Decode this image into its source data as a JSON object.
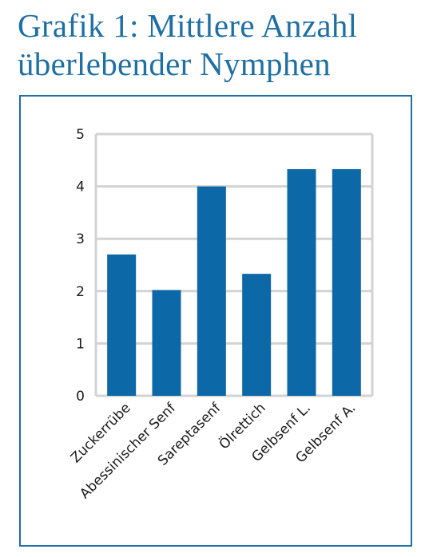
{
  "title": "Grafik 1: Mittlere Anzahl überlebender Nymphen",
  "chart_data": {
    "type": "bar",
    "categories": [
      "Zuckerrübe",
      "Abessinischer Senf",
      "Sareptasenf",
      "Ölrettich",
      "Gelbsenf L.",
      "Gelbsenf A."
    ],
    "values": [
      2.7,
      2.02,
      4.0,
      2.33,
      4.33,
      4.33
    ],
    "ylim": [
      0,
      5
    ],
    "yticks": [
      0,
      1,
      2,
      3,
      4,
      5
    ],
    "grid": true,
    "legend": "none",
    "colors": {
      "bar": "#0d68a7",
      "grid": "#d3d3d3",
      "frame": "#1f6ea6",
      "title": "#1d6fa5"
    }
  }
}
